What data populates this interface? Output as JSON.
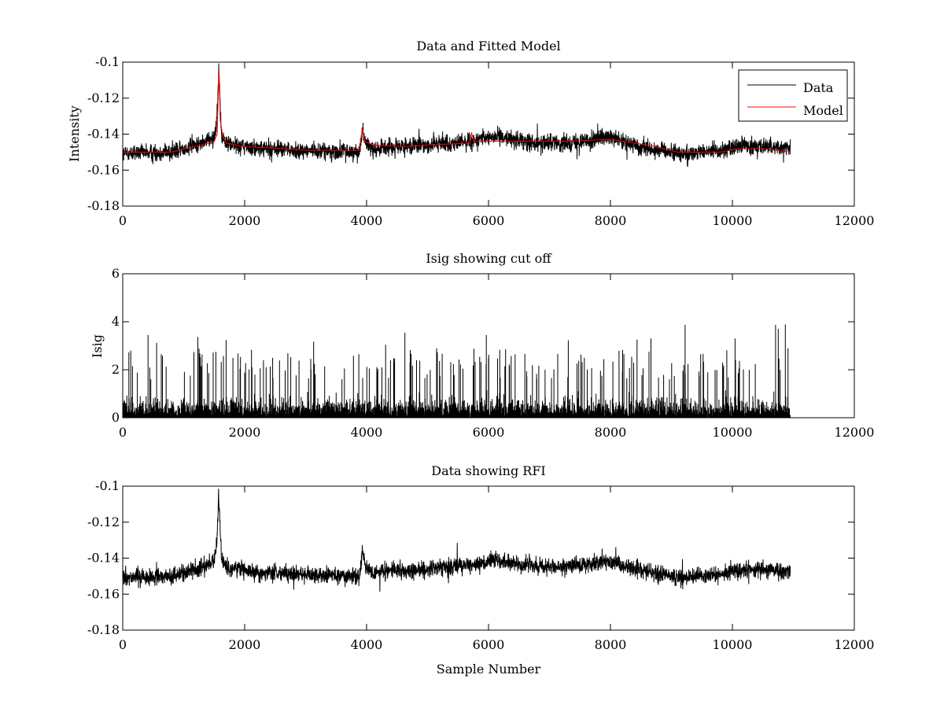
{
  "figure": {
    "background": "#ffffff"
  },
  "chart_data": [
    {
      "type": "line",
      "title": "Data and Fitted Model",
      "xlabel": "",
      "ylabel": "Intensity",
      "xlim": [
        0,
        12000
      ],
      "ylim": [
        -0.18,
        -0.1
      ],
      "xticks": [
        0,
        2000,
        4000,
        6000,
        8000,
        10000,
        12000
      ],
      "xtick_labels": [
        "0",
        "2000",
        "4000",
        "6000",
        "8000",
        "10000",
        "12000"
      ],
      "yticks": [
        -0.18,
        -0.16,
        -0.14,
        -0.12,
        -0.1
      ],
      "ytick_labels": [
        "-0.18",
        "-0.16",
        "-0.14",
        "-0.12",
        "-0.1"
      ],
      "grid": false,
      "legend": {
        "placement": "top-right",
        "entries": [
          "Data",
          "Model"
        ]
      },
      "series": [
        {
          "name": "Data",
          "color": "#000000",
          "style": "noisy",
          "n_samples": 10950,
          "noise_amplitude": 0.0045,
          "baseline": [
            [
              0,
              -0.151
            ],
            [
              800,
              -0.15
            ],
            [
              1300,
              -0.145
            ],
            [
              1500,
              -0.141
            ],
            [
              1540,
              -0.134
            ],
            [
              1575,
              -0.104
            ],
            [
              1620,
              -0.141
            ],
            [
              1700,
              -0.145
            ],
            [
              2200,
              -0.148
            ],
            [
              3000,
              -0.149
            ],
            [
              3880,
              -0.15
            ],
            [
              3930,
              -0.137
            ],
            [
              3980,
              -0.145
            ],
            [
              4100,
              -0.148
            ],
            [
              4650,
              -0.147
            ],
            [
              5000,
              -0.146
            ],
            [
              5700,
              -0.144
            ],
            [
              6100,
              -0.141
            ],
            [
              6600,
              -0.144
            ],
            [
              7200,
              -0.145
            ],
            [
              7950,
              -0.142
            ],
            [
              8500,
              -0.147
            ],
            [
              9200,
              -0.151
            ],
            [
              9800,
              -0.149
            ],
            [
              10300,
              -0.146
            ],
            [
              10950,
              -0.148
            ]
          ]
        },
        {
          "name": "Model",
          "color": "#ff0000",
          "style": "line",
          "points": [
            [
              0,
              -0.15
            ],
            [
              800,
              -0.15
            ],
            [
              1300,
              -0.146
            ],
            [
              1500,
              -0.144
            ],
            [
              1550,
              -0.14
            ],
            [
              1580,
              -0.104
            ],
            [
              1600,
              -0.132
            ],
            [
              1640,
              -0.141
            ],
            [
              1700,
              -0.145
            ],
            [
              2000,
              -0.147
            ],
            [
              2600,
              -0.148
            ],
            [
              3000,
              -0.149
            ],
            [
              3880,
              -0.149
            ],
            [
              3930,
              -0.137
            ],
            [
              3970,
              -0.144
            ],
            [
              4100,
              -0.146
            ],
            [
              4650,
              -0.147
            ],
            [
              5000,
              -0.146
            ],
            [
              5700,
              -0.145
            ],
            [
              5720,
              -0.139
            ],
            [
              5760,
              -0.144
            ],
            [
              6000,
              -0.144
            ],
            [
              6600,
              -0.144
            ],
            [
              7200,
              -0.144
            ],
            [
              8000,
              -0.143
            ],
            [
              8600,
              -0.146
            ],
            [
              9100,
              -0.15
            ],
            [
              9800,
              -0.15
            ],
            [
              10100,
              -0.148
            ],
            [
              10500,
              -0.148
            ],
            [
              10950,
              -0.15
            ]
          ]
        }
      ]
    },
    {
      "type": "line",
      "title": "Isig showing cut off",
      "xlabel": "",
      "ylabel": "Isig",
      "xlim": [
        0,
        12000
      ],
      "ylim": [
        0,
        6
      ],
      "xticks": [
        0,
        2000,
        4000,
        6000,
        8000,
        10000,
        12000
      ],
      "xtick_labels": [
        "0",
        "2000",
        "4000",
        "6000",
        "8000",
        "10000",
        "12000"
      ],
      "yticks": [
        0,
        2,
        4,
        6
      ],
      "ytick_labels": [
        "0",
        "2",
        "4",
        "6"
      ],
      "grid": false,
      "series": [
        {
          "color": "#000000",
          "style": "spikes",
          "n_samples": 10950,
          "max_value": 3.9,
          "typical_range": [
            0,
            2.2
          ]
        }
      ]
    },
    {
      "type": "line",
      "title": "Data showing RFI",
      "xlabel": "Sample Number",
      "ylabel": "",
      "xlim": [
        0,
        12000
      ],
      "ylim": [
        -0.18,
        -0.1
      ],
      "xticks": [
        0,
        2000,
        4000,
        6000,
        8000,
        10000,
        12000
      ],
      "xtick_labels": [
        "0",
        "2000",
        "4000",
        "6000",
        "8000",
        "10000",
        "12000"
      ],
      "yticks": [
        -0.18,
        -0.16,
        -0.14,
        -0.12,
        -0.1
      ],
      "ytick_labels": [
        "-0.18",
        "-0.16",
        "-0.14",
        "-0.12",
        "-0.1"
      ],
      "grid": false,
      "series": [
        {
          "color": "#000000",
          "style": "noisy",
          "n_samples": 10950,
          "noise_amplitude": 0.0045,
          "baseline": [
            [
              0,
              -0.151
            ],
            [
              800,
              -0.15
            ],
            [
              1300,
              -0.145
            ],
            [
              1500,
              -0.141
            ],
            [
              1540,
              -0.134
            ],
            [
              1575,
              -0.104
            ],
            [
              1620,
              -0.141
            ],
            [
              1700,
              -0.145
            ],
            [
              2200,
              -0.148
            ],
            [
              3000,
              -0.149
            ],
            [
              3880,
              -0.15
            ],
            [
              3930,
              -0.137
            ],
            [
              3980,
              -0.145
            ],
            [
              4100,
              -0.148
            ],
            [
              4650,
              -0.147
            ],
            [
              5000,
              -0.146
            ],
            [
              5700,
              -0.144
            ],
            [
              6100,
              -0.141
            ],
            [
              6600,
              -0.144
            ],
            [
              7200,
              -0.145
            ],
            [
              7950,
              -0.142
            ],
            [
              8500,
              -0.147
            ],
            [
              9200,
              -0.151
            ],
            [
              9800,
              -0.149
            ],
            [
              10300,
              -0.146
            ],
            [
              10950,
              -0.148
            ]
          ]
        }
      ]
    }
  ]
}
